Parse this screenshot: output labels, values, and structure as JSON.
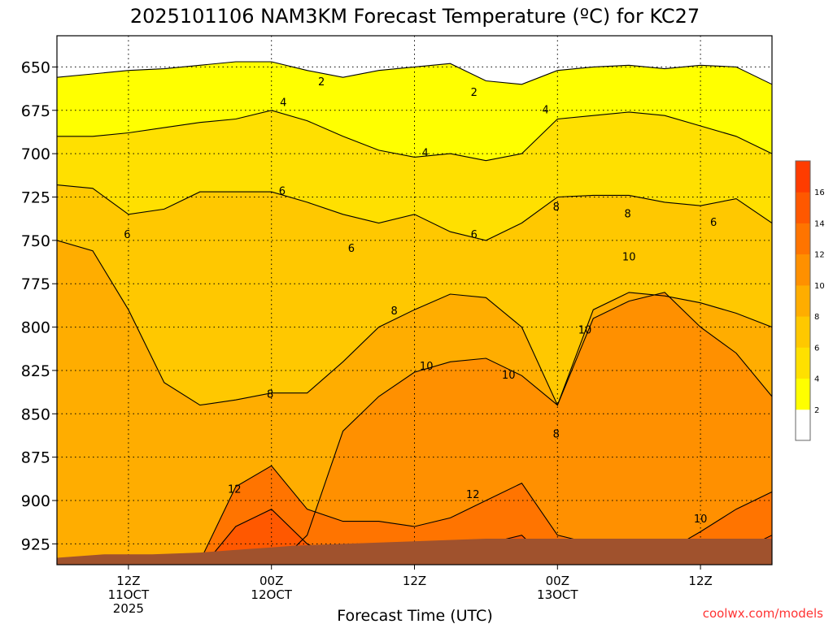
{
  "chart_data": {
    "type": "heatmap",
    "title": "2025101106 NAM3KM Forecast Temperature (ºC) for KC27",
    "xlabel": "Forecast Time (UTC)",
    "ylabel": "",
    "credit": "coolwx.com/models",
    "y_axis": {
      "unit": "hPa",
      "ylim": [
        632,
        937
      ],
      "ticks": [
        650,
        675,
        700,
        725,
        750,
        775,
        800,
        825,
        850,
        875,
        900,
        925
      ],
      "tick_labels": [
        "650",
        "675",
        "700",
        "725",
        "750",
        "775",
        "800",
        "825",
        "850",
        "875",
        "900",
        "925"
      ]
    },
    "x_axis": {
      "unit": "hours since 2025-10-11 06Z",
      "xlim": [
        0,
        60
      ],
      "ticks": [
        {
          "hour": 6,
          "lines": [
            "12Z",
            "11OCT",
            "2025"
          ]
        },
        {
          "hour": 18,
          "lines": [
            "00Z",
            "12OCT"
          ]
        },
        {
          "hour": 30,
          "lines": [
            "12Z"
          ]
        },
        {
          "hour": 42,
          "lines": [
            "00Z",
            "13OCT"
          ]
        },
        {
          "hour": 54,
          "lines": [
            "12Z"
          ]
        }
      ]
    },
    "colorbar": {
      "levels": [
        0,
        2,
        4,
        6,
        8,
        10,
        12,
        14,
        16,
        18
      ],
      "tick_labels": [
        "2",
        "4",
        "6",
        "8",
        "10",
        "12",
        "14",
        "16"
      ],
      "colors": [
        "#ffffff",
        "#ffff00",
        "#ffe000",
        "#ffc800",
        "#ffad00",
        "#ff9000",
        "#ff7400",
        "#ff5800",
        "#ff3c00"
      ]
    },
    "contour_labels": [
      {
        "text": "2",
        "hour": 22.2,
        "p": 659
      },
      {
        "text": "2",
        "hour": 35.0,
        "p": 665
      },
      {
        "text": "4",
        "hour": 19.0,
        "p": 671
      },
      {
        "text": "4",
        "hour": 41.0,
        "p": 675
      },
      {
        "text": "4",
        "hour": 30.9,
        "p": 700
      },
      {
        "text": "6",
        "hour": 18.9,
        "p": 722
      },
      {
        "text": "6",
        "hour": 55.1,
        "p": 740
      },
      {
        "text": "6",
        "hour": 5.9,
        "p": 747
      },
      {
        "text": "6",
        "hour": 35.0,
        "p": 747
      },
      {
        "text": "6",
        "hour": 24.7,
        "p": 755
      },
      {
        "text": "8",
        "hour": 41.9,
        "p": 731
      },
      {
        "text": "8",
        "hour": 47.9,
        "p": 735
      },
      {
        "text": "8",
        "hour": 28.3,
        "p": 791
      },
      {
        "text": "8",
        "hour": 17.9,
        "p": 839
      },
      {
        "text": "8",
        "hour": 41.9,
        "p": 862
      },
      {
        "text": "10",
        "hour": 48.0,
        "p": 760
      },
      {
        "text": "10",
        "hour": 44.3,
        "p": 802
      },
      {
        "text": "10",
        "hour": 31.0,
        "p": 823
      },
      {
        "text": "10",
        "hour": 37.9,
        "p": 828
      },
      {
        "text": "10",
        "hour": 54.0,
        "p": 911
      },
      {
        "text": "12",
        "hour": 14.9,
        "p": 894
      },
      {
        "text": "12",
        "hour": 34.9,
        "p": 897
      }
    ],
    "profile": {
      "hours": [
        0,
        3,
        6,
        9,
        12,
        15,
        18,
        21,
        24,
        27,
        30,
        33,
        36,
        39,
        42,
        45,
        48,
        51,
        54,
        57,
        60
      ],
      "isotherm_pressures": {
        "2": [
          656,
          654,
          652,
          651,
          649,
          647,
          647,
          652,
          656,
          652,
          650,
          648,
          658,
          660,
          652,
          650,
          649,
          651,
          649,
          650,
          660
        ],
        "4": [
          690,
          690,
          688,
          685,
          682,
          680,
          675,
          681,
          690,
          698,
          702,
          700,
          704,
          700,
          680,
          678,
          676,
          678,
          684,
          690,
          700
        ],
        "6": [
          718,
          720,
          735,
          732,
          722,
          722,
          722,
          728,
          735,
          740,
          735,
          745,
          750,
          740,
          725,
          724,
          724,
          728,
          730,
          726,
          740
        ],
        "8": [
          750,
          756,
          790,
          832,
          845,
          842,
          838,
          838,
          820,
          800,
          790,
          781,
          783,
          800,
          845,
          790,
          780,
          782,
          786,
          792,
          800
        ],
        "10": [
          940,
          940,
          940,
          940,
          940,
          940,
          940,
          920,
          860,
          840,
          826,
          820,
          818,
          828,
          845,
          795,
          785,
          780,
          800,
          815,
          840
        ],
        "12": [
          940,
          940,
          940,
          940,
          935,
          892,
          880,
          905,
          912,
          912,
          915,
          910,
          900,
          890,
          920,
          925,
          930,
          930,
          918,
          905,
          895
        ],
        "14": [
          940,
          940,
          940,
          940,
          940,
          915,
          905,
          925,
          935,
          940,
          940,
          935,
          925,
          920,
          940,
          940,
          940,
          940,
          940,
          930,
          920
        ]
      }
    },
    "terrain": {
      "color": "#a0522d",
      "hours": [
        0,
        4,
        8,
        12,
        14,
        16,
        18,
        20,
        24,
        28,
        32,
        36,
        40,
        44,
        48,
        52,
        56,
        60
      ],
      "surface_p": [
        933,
        931,
        931,
        930,
        929,
        928,
        927,
        926,
        925,
        924,
        923,
        922,
        922,
        922,
        922,
        922,
        922,
        922
      ]
    }
  }
}
